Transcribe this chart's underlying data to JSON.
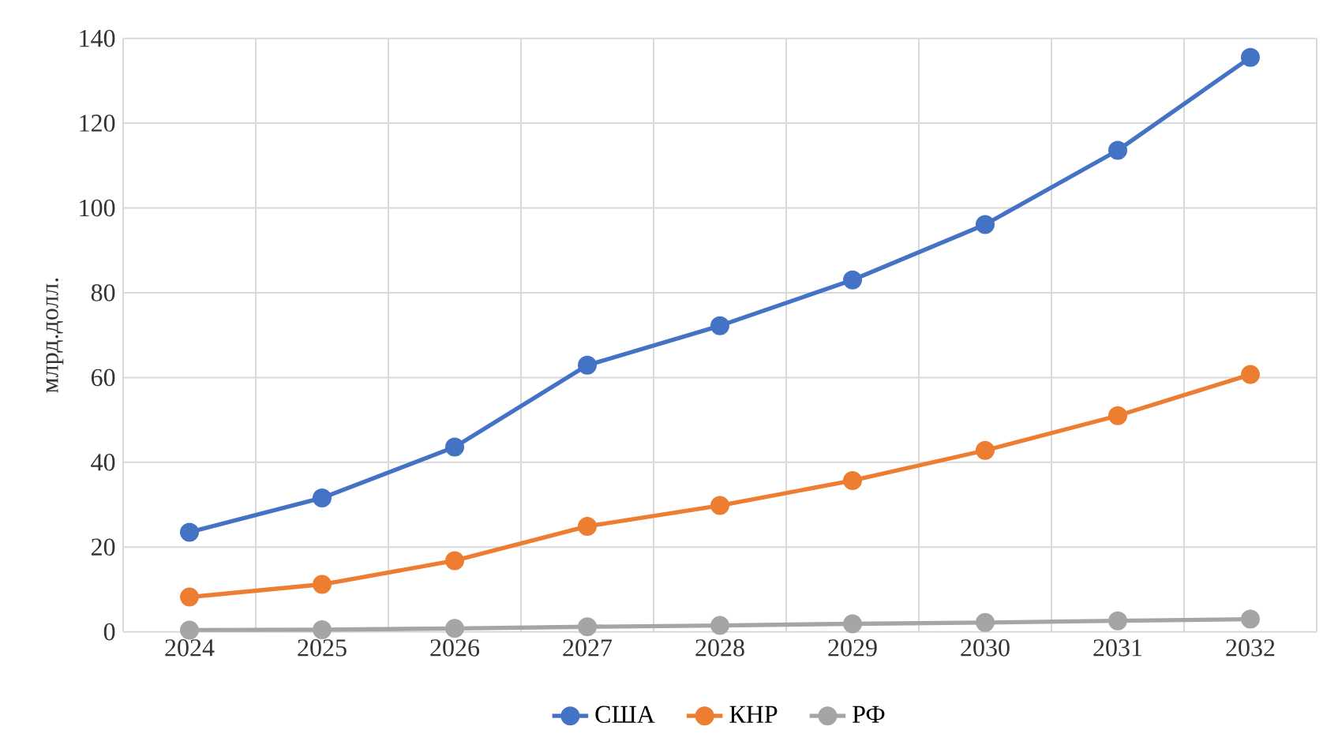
{
  "chart_data": {
    "type": "line",
    "ylabel": "млрд.долл.",
    "categories": [
      "2024",
      "2025",
      "2026",
      "2027",
      "2028",
      "2029",
      "2030",
      "2031",
      "2032"
    ],
    "series": [
      {
        "name": "США",
        "color": "#4472c4",
        "values": [
          23.5,
          31.6,
          43.6,
          62.9,
          72.2,
          83.0,
          96.1,
          113.6,
          135.5
        ]
      },
      {
        "name": "КНР",
        "color": "#ed7d31",
        "values": [
          8.2,
          11.2,
          16.8,
          24.9,
          29.8,
          35.7,
          42.8,
          51.0,
          60.7
        ]
      },
      {
        "name": "РФ",
        "color": "#a5a5a5",
        "values": [
          0.4,
          0.5,
          0.8,
          1.2,
          1.5,
          1.9,
          2.2,
          2.6,
          3.0
        ]
      }
    ],
    "ylim": [
      0,
      140
    ],
    "yticks": [
      0,
      20,
      40,
      60,
      80,
      100,
      120,
      140
    ],
    "grid": true,
    "legend": "bottom",
    "marker": "circle",
    "line_style": "solid"
  }
}
